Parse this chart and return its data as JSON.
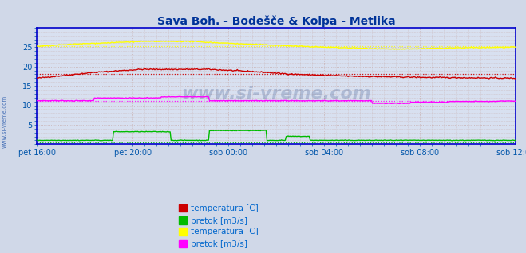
{
  "title": "Sava Boh. - Bodešče & Kolpa - Metlika",
  "title_color": "#003399",
  "bg_color": "#d0d8e8",
  "plot_bg_color": "#d8e0f0",
  "tick_labels": [
    "pet 16:00",
    "pet 20:00",
    "sob 00:00",
    "sob 04:00",
    "sob 08:00",
    "sob 12:00"
  ],
  "tick_positions": [
    0,
    96,
    192,
    288,
    384,
    480
  ],
  "n_points": 500,
  "ylim": [
    0,
    30
  ],
  "yticks": [
    5,
    10,
    15,
    20,
    25
  ],
  "watermark": "www.si-vreme.com",
  "watermark_color": "#1a3a7a",
  "watermark_alpha": 0.22,
  "left_label": "www.si-vreme.com",
  "left_label_color": "#2255aa",
  "line1_color": "#cc0000",
  "line2_color": "#00bb00",
  "line3_color": "#ffff00",
  "line4_color": "#ff00ff",
  "legend_bg": "#d0d8e8",
  "legend_text_color": "#0066cc",
  "border_color": "#0000cc",
  "tick_color": "#0055aa",
  "grid_major_color": "#c8b0b0",
  "grid_minor_color": "#c8b0b0",
  "mean1": 18.0,
  "mean2": 0.5,
  "mean3": 25.3,
  "mean4": 11.2
}
